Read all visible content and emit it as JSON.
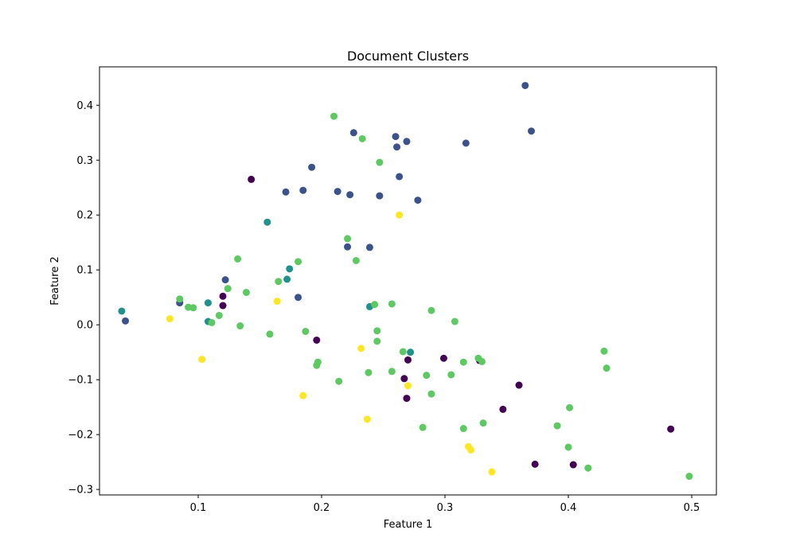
{
  "chart_data": {
    "type": "scatter",
    "title": "Document Clusters",
    "xlabel": "Feature 1",
    "ylabel": "Feature 2",
    "xlim": [
      0.02,
      0.52
    ],
    "ylim": [
      -0.31,
      0.47
    ],
    "xticks": [
      0.1,
      0.2,
      0.3,
      0.4,
      0.5
    ],
    "xtick_labels": [
      "0.1",
      "0.2",
      "0.3",
      "0.4",
      "0.5"
    ],
    "yticks": [
      -0.3,
      -0.2,
      -0.1,
      0.0,
      0.1,
      0.2,
      0.3,
      0.4
    ],
    "ytick_labels": [
      "−0.3",
      "−0.2",
      "−0.1",
      "0.0",
      "0.1",
      "0.2",
      "0.3",
      "0.4"
    ],
    "grid": false,
    "legend": "none",
    "series": [
      {
        "cluster": 0,
        "color": "#440154",
        "points": [
          [
            0.143,
            0.265
          ],
          [
            0.12,
            0.052
          ],
          [
            0.12,
            0.035
          ],
          [
            0.196,
            -0.028
          ],
          [
            0.299,
            -0.061
          ],
          [
            0.328,
            -0.065
          ],
          [
            0.27,
            -0.064
          ],
          [
            0.267,
            -0.098
          ],
          [
            0.269,
            -0.134
          ],
          [
            0.36,
            -0.11
          ],
          [
            0.347,
            -0.154
          ],
          [
            0.373,
            -0.254
          ],
          [
            0.404,
            -0.255
          ],
          [
            0.483,
            -0.19
          ]
        ]
      },
      {
        "cluster": 1,
        "color": "#3b528b",
        "points": [
          [
            0.041,
            0.007
          ],
          [
            0.085,
            0.04
          ],
          [
            0.122,
            0.082
          ],
          [
            0.181,
            0.05
          ],
          [
            0.171,
            0.242
          ],
          [
            0.185,
            0.245
          ],
          [
            0.192,
            0.287
          ],
          [
            0.213,
            0.243
          ],
          [
            0.223,
            0.237
          ],
          [
            0.226,
            0.35
          ],
          [
            0.221,
            0.142
          ],
          [
            0.239,
            0.141
          ],
          [
            0.247,
            0.235
          ],
          [
            0.26,
            0.343
          ],
          [
            0.261,
            0.324
          ],
          [
            0.263,
            0.27
          ],
          [
            0.269,
            0.334
          ],
          [
            0.278,
            0.227
          ],
          [
            0.317,
            0.331
          ],
          [
            0.365,
            0.436
          ],
          [
            0.37,
            0.353
          ]
        ]
      },
      {
        "cluster": 2,
        "color": "#21918c",
        "points": [
          [
            0.038,
            0.025
          ],
          [
            0.108,
            0.04
          ],
          [
            0.108,
            0.006
          ],
          [
            0.156,
            0.187
          ],
          [
            0.172,
            0.083
          ],
          [
            0.174,
            0.102
          ],
          [
            0.239,
            0.033
          ],
          [
            0.272,
            -0.05
          ]
        ]
      },
      {
        "cluster": 3,
        "color": "#5ec962",
        "points": [
          [
            0.085,
            0.047
          ],
          [
            0.092,
            0.032
          ],
          [
            0.096,
            0.031
          ],
          [
            0.111,
            0.004
          ],
          [
            0.117,
            0.017
          ],
          [
            0.124,
            0.066
          ],
          [
            0.132,
            0.12
          ],
          [
            0.134,
            -0.002
          ],
          [
            0.139,
            0.059
          ],
          [
            0.158,
            -0.017
          ],
          [
            0.165,
            0.079
          ],
          [
            0.181,
            0.115
          ],
          [
            0.187,
            -0.012
          ],
          [
            0.196,
            -0.074
          ],
          [
            0.197,
            -0.068
          ],
          [
            0.21,
            0.38
          ],
          [
            0.214,
            -0.103
          ],
          [
            0.221,
            0.157
          ],
          [
            0.228,
            0.117
          ],
          [
            0.233,
            0.339
          ],
          [
            0.238,
            -0.087
          ],
          [
            0.243,
            0.037
          ],
          [
            0.245,
            -0.011
          ],
          [
            0.245,
            -0.03
          ],
          [
            0.247,
            0.296
          ],
          [
            0.257,
            0.038
          ],
          [
            0.257,
            -0.085
          ],
          [
            0.266,
            -0.049
          ],
          [
            0.282,
            -0.187
          ],
          [
            0.285,
            -0.092
          ],
          [
            0.289,
            0.026
          ],
          [
            0.289,
            -0.126
          ],
          [
            0.305,
            -0.091
          ],
          [
            0.308,
            0.006
          ],
          [
            0.315,
            -0.068
          ],
          [
            0.315,
            -0.189
          ],
          [
            0.327,
            -0.061
          ],
          [
            0.33,
            -0.067
          ],
          [
            0.331,
            -0.179
          ],
          [
            0.391,
            -0.184
          ],
          [
            0.4,
            -0.223
          ],
          [
            0.401,
            -0.151
          ],
          [
            0.416,
            -0.261
          ],
          [
            0.429,
            -0.048
          ],
          [
            0.431,
            -0.079
          ],
          [
            0.498,
            -0.276
          ]
        ]
      },
      {
        "cluster": 4,
        "color": "#fde725",
        "points": [
          [
            0.077,
            0.011
          ],
          [
            0.103,
            -0.063
          ],
          [
            0.164,
            0.043
          ],
          [
            0.185,
            -0.129
          ],
          [
            0.232,
            -0.043
          ],
          [
            0.237,
            -0.172
          ],
          [
            0.263,
            0.2
          ],
          [
            0.27,
            -0.111
          ],
          [
            0.319,
            -0.222
          ],
          [
            0.321,
            -0.228
          ],
          [
            0.338,
            -0.268
          ]
        ]
      }
    ]
  }
}
